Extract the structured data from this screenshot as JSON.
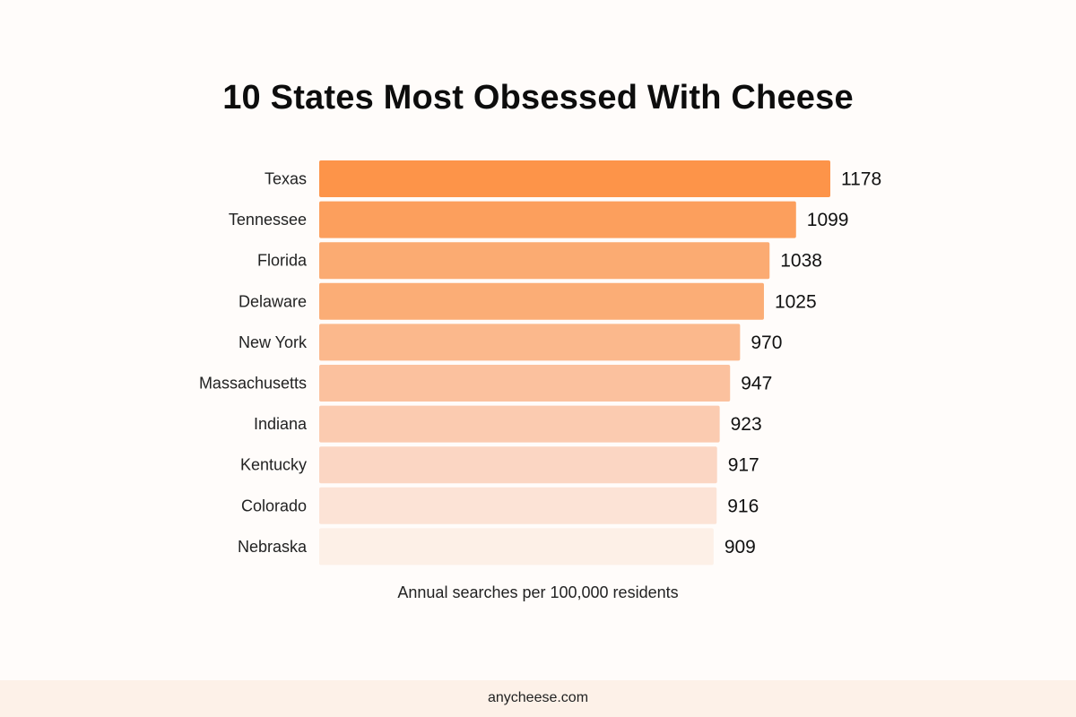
{
  "chart_data": {
    "type": "bar",
    "orientation": "horizontal",
    "title": "10 States Most Obsessed With Cheese",
    "xlabel": "Annual searches per 100,000 residents",
    "ylabel": "",
    "categories": [
      "Texas",
      "Tennessee",
      "Florida",
      "Delaware",
      "New York",
      "Massachusetts",
      "Indiana",
      "Kentucky",
      "Colorado",
      "Nebraska"
    ],
    "values": [
      1178,
      1099,
      1038,
      1025,
      970,
      947,
      923,
      917,
      916,
      909
    ],
    "xlim": [
      0,
      1178
    ],
    "grid": false,
    "legend": "none",
    "data_labels": true,
    "bar_colors": [
      "#fd9449",
      "#fc9f5d",
      "#fbab72",
      "#fbad76",
      "#fbb88c",
      "#fbc19e",
      "#fbcbb0",
      "#fbd6c3",
      "#fce3d6",
      "#fdf0e7"
    ]
  },
  "footer": {
    "source": "anycheese.com"
  },
  "colors": {
    "background": "#fffcfa",
    "footer_background": "#fdf1e8"
  }
}
